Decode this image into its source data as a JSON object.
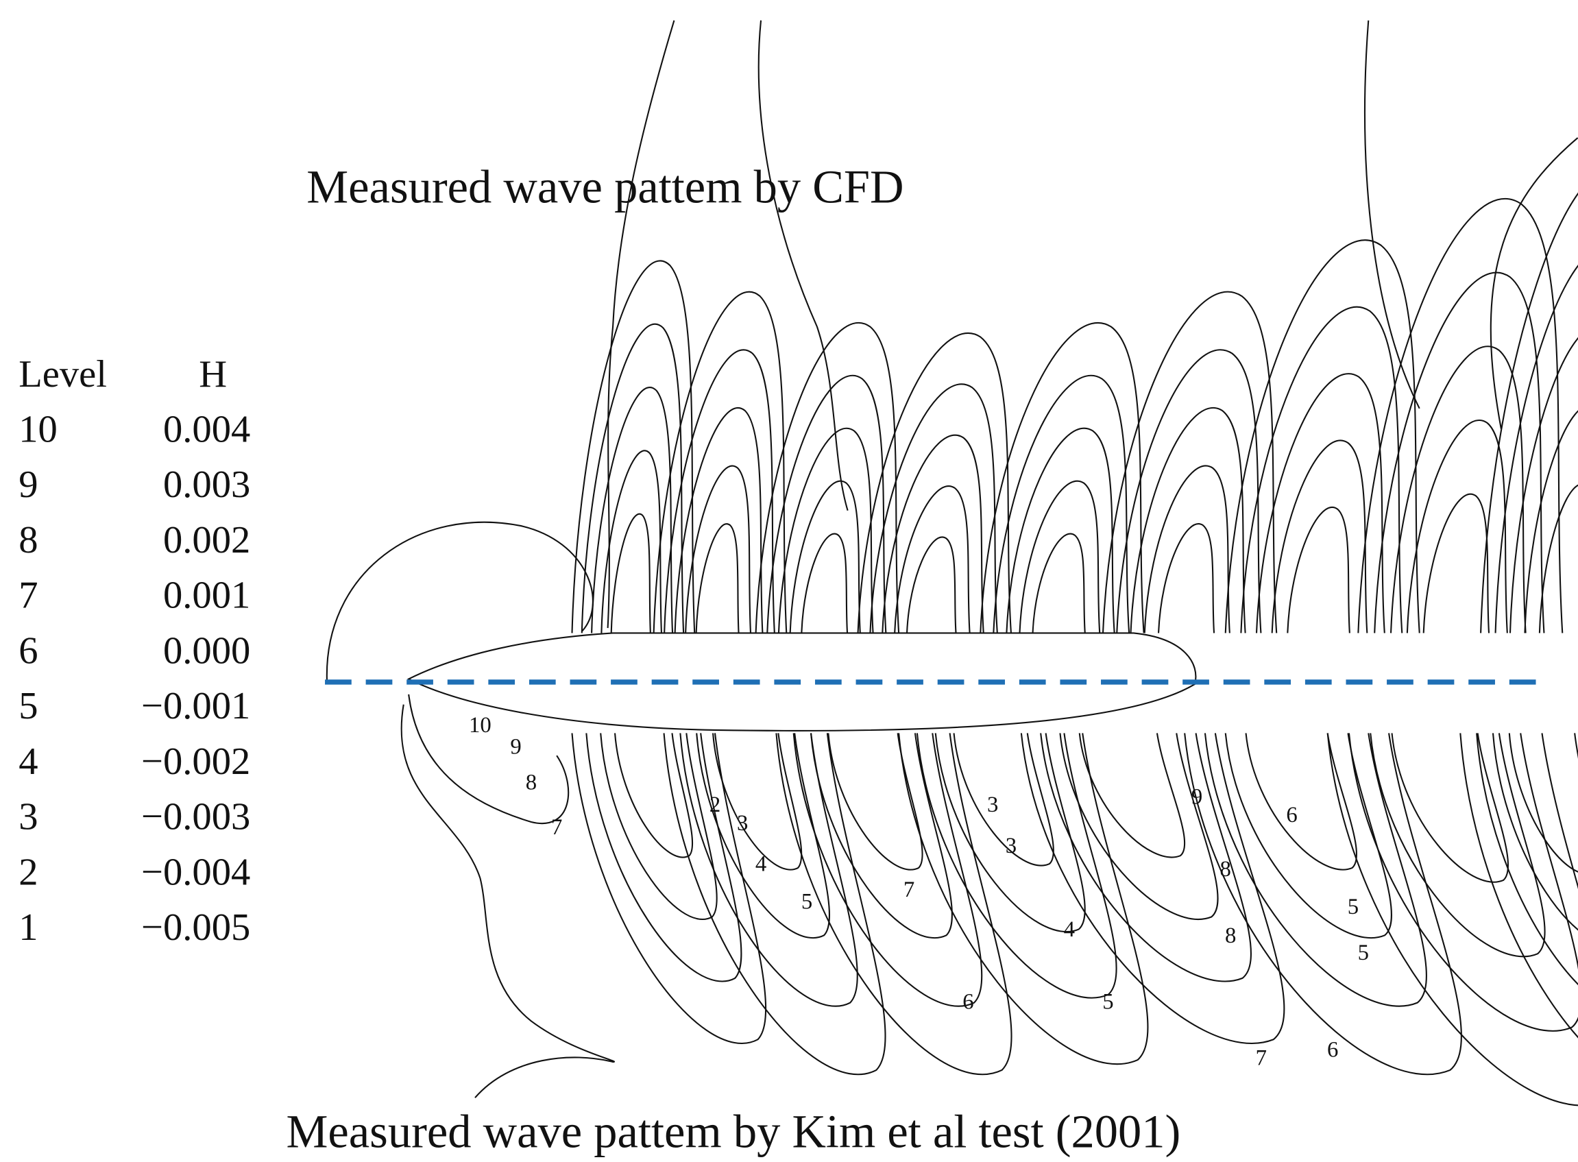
{
  "top_title": "Measured wave pattem by CFD",
  "bottom_title": "Measured wave pattem by Kim et al test (2001)",
  "legend": {
    "header": [
      "Level",
      "H"
    ],
    "rows": [
      [
        "10",
        "0.004"
      ],
      [
        "9",
        "0.003"
      ],
      [
        "8",
        "0.002"
      ],
      [
        "7",
        "0.001"
      ],
      [
        "6",
        "0.000"
      ],
      [
        "5",
        "−0.001"
      ],
      [
        "4",
        "−0.002"
      ],
      [
        "3",
        "−0.003"
      ],
      [
        "2",
        "−0.004"
      ],
      [
        "1",
        "−0.005"
      ]
    ]
  },
  "contour_labels": [
    "10",
    "9",
    "8",
    "7",
    "2",
    "3",
    "4",
    "5",
    "7",
    "6",
    "4",
    "5",
    "3",
    "3",
    "9",
    "6",
    "8",
    "5",
    "8",
    "5",
    "7",
    "6"
  ]
}
